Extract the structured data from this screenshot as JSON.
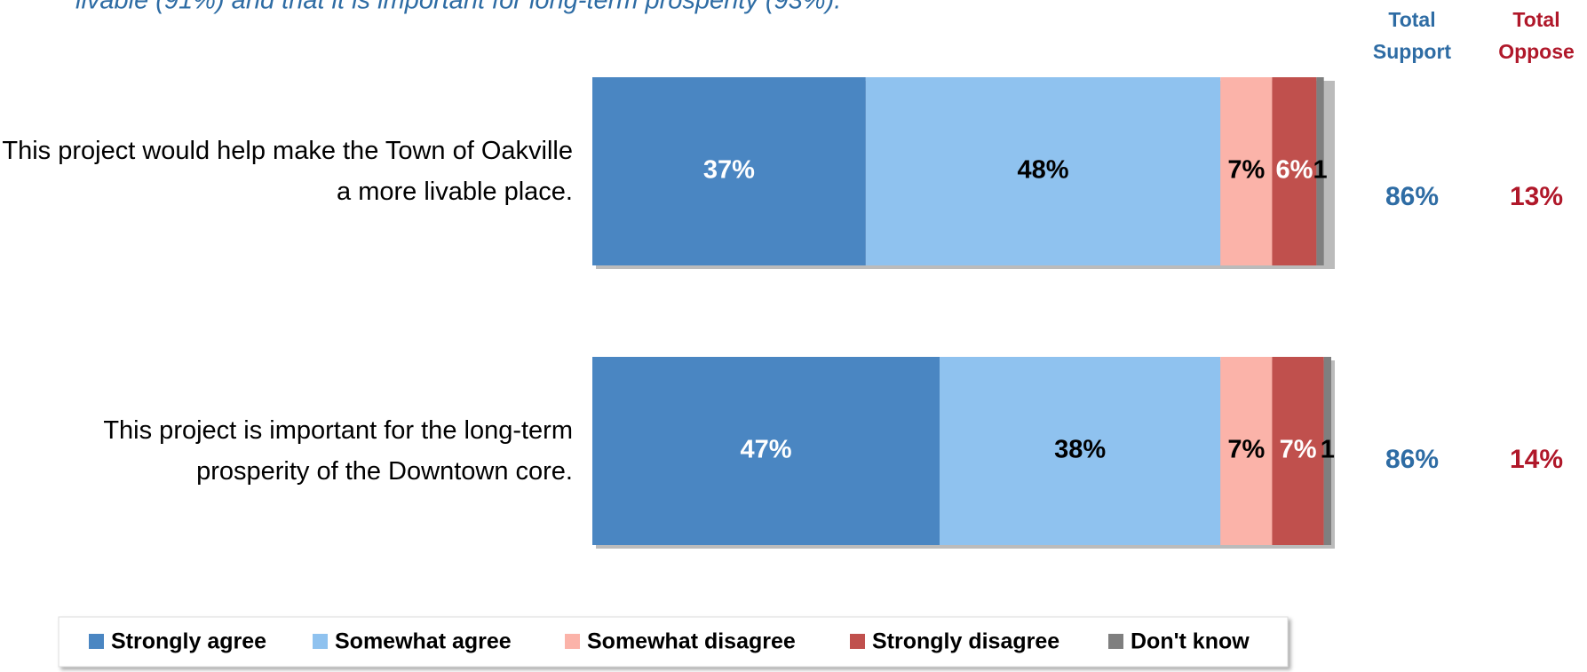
{
  "chart_data": {
    "type": "stacked-bar-horizontal",
    "subtitle": "livable (91%) and that it is important for long-term prosperity (93%).",
    "categories": [
      "This project would help make the Town of Oakville a more livable place.",
      "This project is important for the long-term prosperity of the Downtown core."
    ],
    "xlim": [
      0,
      100
    ],
    "series": [
      {
        "name": "Strongly agree",
        "color": "#4a86c2",
        "label_color": "#ffffff",
        "values": [
          37,
          47
        ],
        "value_labels": [
          "37%",
          "47%"
        ]
      },
      {
        "name": "Somewhat agree",
        "color": "#8fc2ef",
        "label_color": "#000000",
        "values": [
          48,
          38
        ],
        "value_labels": [
          "48%",
          "38%"
        ]
      },
      {
        "name": "Somewhat disagree",
        "color": "#fbb3a9",
        "label_color": "#000000",
        "values": [
          7,
          7
        ],
        "value_labels": [
          "7%",
          "7%"
        ]
      },
      {
        "name": "Strongly disagree",
        "color": "#c0504d",
        "label_color": "#ffffff",
        "values": [
          6,
          7
        ],
        "value_labels": [
          "6%",
          "7%"
        ]
      },
      {
        "name": "Don't know",
        "color": "#7f7f7f",
        "label_color": "#000000",
        "values": [
          1,
          1
        ],
        "value_labels": [
          "1",
          "1"
        ]
      }
    ],
    "totals": [
      {
        "name": "Total Support",
        "color": "#2e6ca4",
        "values": [
          86,
          86
        ],
        "value_labels": [
          "86%",
          "86%"
        ]
      },
      {
        "name": "Total Oppose",
        "color": "#b0182a",
        "values": [
          13,
          14
        ],
        "value_labels": [
          "13%",
          "14%"
        ]
      }
    ]
  }
}
